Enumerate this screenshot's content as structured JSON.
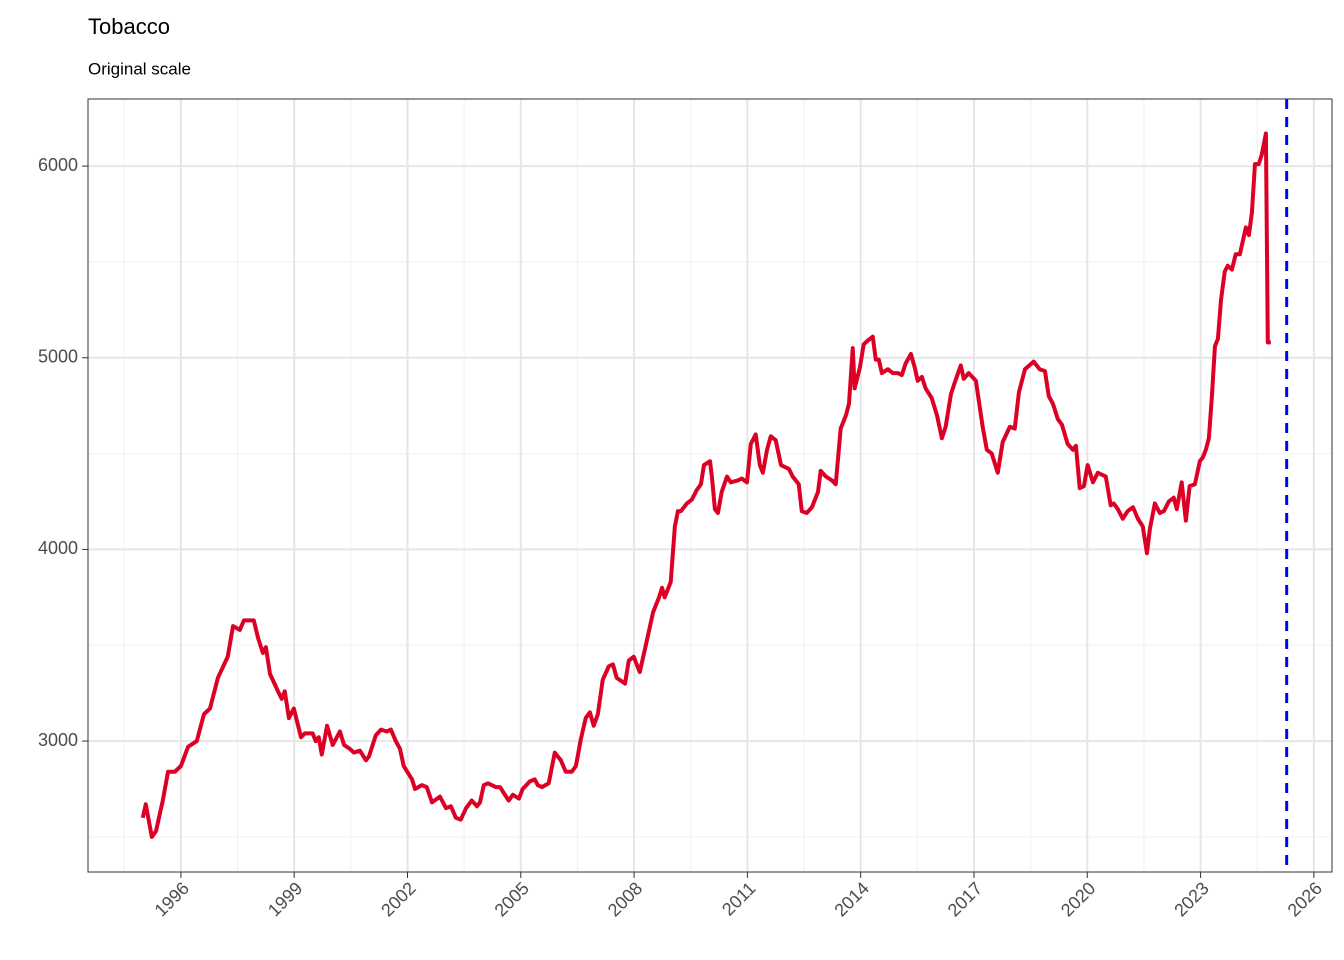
{
  "chart_data": {
    "type": "line",
    "title": "Tobacco",
    "subtitle": "Original scale",
    "x": [
      1994.99,
      1995.07,
      1995.23,
      1995.34,
      1995.52,
      1995.66,
      1995.84,
      1996.0,
      1996.19,
      1996.42,
      1996.61,
      1996.77,
      1996.98,
      1997.24,
      1997.38,
      1997.56,
      1997.67,
      1997.93,
      1998.04,
      1998.17,
      1998.25,
      1998.36,
      1998.57,
      1998.67,
      1998.75,
      1998.86,
      1998.99,
      1999.18,
      1999.28,
      1999.49,
      1999.57,
      1999.65,
      1999.73,
      1999.87,
      2000.02,
      2000.21,
      2000.32,
      2000.47,
      2000.58,
      2000.74,
      2000.9,
      2000.98,
      2001.16,
      2001.3,
      2001.45,
      2001.56,
      2001.69,
      2001.8,
      2001.9,
      2002.12,
      2002.2,
      2002.38,
      2002.51,
      2002.65,
      2002.86,
      2003.02,
      2003.15,
      2003.28,
      2003.41,
      2003.55,
      2003.7,
      2003.84,
      2003.92,
      2004.02,
      2004.13,
      2004.34,
      2004.45,
      2004.58,
      2004.68,
      2004.79,
      2004.95,
      2005.05,
      2005.24,
      2005.37,
      2005.45,
      2005.56,
      2005.74,
      2005.9,
      2006.06,
      2006.19,
      2006.35,
      2006.46,
      2006.59,
      2006.72,
      2006.83,
      2006.93,
      2007.04,
      2007.17,
      2007.33,
      2007.44,
      2007.54,
      2007.76,
      2007.86,
      2007.99,
      2008.15,
      2008.31,
      2008.5,
      2008.66,
      2008.74,
      2008.81,
      2008.97,
      2009.08,
      2009.16,
      2009.24,
      2009.4,
      2009.53,
      2009.66,
      2009.77,
      2009.85,
      2010.01,
      2010.06,
      2010.14,
      2010.22,
      2010.32,
      2010.46,
      2010.56,
      2010.75,
      2010.85,
      2010.99,
      2011.09,
      2011.22,
      2011.33,
      2011.41,
      2011.52,
      2011.62,
      2011.75,
      2011.89,
      2011.99,
      2012.1,
      2012.2,
      2012.28,
      2012.36,
      2012.44,
      2012.57,
      2012.71,
      2012.87,
      2012.94,
      2013.08,
      2013.24,
      2013.34,
      2013.47,
      2013.61,
      2013.69,
      2013.79,
      2013.84,
      2013.98,
      2014.08,
      2014.19,
      2014.32,
      2014.4,
      2014.48,
      2014.56,
      2014.72,
      2014.85,
      2014.98,
      2015.09,
      2015.19,
      2015.33,
      2015.43,
      2015.51,
      2015.62,
      2015.72,
      2015.88,
      2016.02,
      2016.15,
      2016.25,
      2016.39,
      2016.49,
      2016.65,
      2016.73,
      2016.86,
      2017.05,
      2017.23,
      2017.34,
      2017.47,
      2017.63,
      2017.76,
      2017.95,
      2018.08,
      2018.19,
      2018.35,
      2018.58,
      2018.74,
      2018.88,
      2018.98,
      2019.09,
      2019.22,
      2019.33,
      2019.48,
      2019.62,
      2019.7,
      2019.8,
      2019.91,
      2020.01,
      2020.15,
      2020.28,
      2020.49,
      2020.62,
      2020.7,
      2020.81,
      2020.94,
      2021.07,
      2021.21,
      2021.34,
      2021.47,
      2021.58,
      2021.66,
      2021.79,
      2021.92,
      2022.03,
      2022.16,
      2022.29,
      2022.37,
      2022.5,
      2022.61,
      2022.71,
      2022.85,
      2022.98,
      2023.06,
      2023.14,
      2023.22,
      2023.3,
      2023.38,
      2023.46,
      2023.54,
      2023.64,
      2023.72,
      2023.83,
      2023.93,
      2024.04,
      2024.2,
      2024.28,
      2024.36,
      2024.44,
      2024.54,
      2024.62,
      2024.73,
      2024.78,
      2024.86
    ],
    "values": [
      2600,
      2670,
      2500,
      2530,
      2690,
      2840,
      2840,
      2870,
      2970,
      3000,
      3140,
      3170,
      3330,
      3440,
      3600,
      3580,
      3630,
      3630,
      3540,
      3460,
      3490,
      3350,
      3260,
      3220,
      3260,
      3120,
      3170,
      3020,
      3040,
      3040,
      3000,
      3020,
      2930,
      3080,
      2980,
      3050,
      2980,
      2960,
      2940,
      2950,
      2900,
      2920,
      3030,
      3060,
      3050,
      3060,
      3000,
      2960,
      2870,
      2800,
      2750,
      2770,
      2760,
      2680,
      2710,
      2650,
      2660,
      2600,
      2590,
      2650,
      2690,
      2660,
      2680,
      2770,
      2780,
      2760,
      2760,
      2720,
      2690,
      2720,
      2700,
      2750,
      2790,
      2800,
      2770,
      2760,
      2780,
      2940,
      2900,
      2840,
      2840,
      2870,
      3010,
      3120,
      3150,
      3080,
      3140,
      3320,
      3390,
      3400,
      3330,
      3300,
      3420,
      3440,
      3360,
      3500,
      3670,
      3750,
      3800,
      3750,
      3830,
      4120,
      4200,
      4200,
      4240,
      4260,
      4310,
      4340,
      4440,
      4460,
      4380,
      4210,
      4190,
      4300,
      4380,
      4350,
      4360,
      4370,
      4350,
      4550,
      4600,
      4440,
      4400,
      4520,
      4590,
      4570,
      4440,
      4430,
      4420,
      4380,
      4360,
      4340,
      4200,
      4190,
      4220,
      4300,
      4410,
      4380,
      4360,
      4340,
      4630,
      4700,
      4760,
      5050,
      4840,
      4950,
      5070,
      5090,
      5110,
      4990,
      4990,
      4920,
      4940,
      4920,
      4920,
      4910,
      4970,
      5020,
      4950,
      4880,
      4900,
      4840,
      4790,
      4700,
      4580,
      4640,
      4810,
      4870,
      4960,
      4890,
      4920,
      4880,
      4640,
      4520,
      4500,
      4400,
      4560,
      4640,
      4630,
      4820,
      4940,
      4980,
      4940,
      4930,
      4800,
      4760,
      4680,
      4650,
      4550,
      4520,
      4540,
      4320,
      4330,
      4440,
      4350,
      4400,
      4380,
      4230,
      4240,
      4210,
      4160,
      4200,
      4220,
      4160,
      4120,
      3980,
      4110,
      4240,
      4190,
      4200,
      4250,
      4270,
      4210,
      4350,
      4150,
      4330,
      4340,
      4460,
      4480,
      4520,
      4580,
      4800,
      5060,
      5100,
      5300,
      5450,
      5480,
      5460,
      5540,
      5540,
      5680,
      5640,
      5760,
      6010,
      6010,
      6060,
      6170,
      5080,
      5080
    ],
    "color": "#dc0024",
    "xlim": [
      1993.54,
      2026.48
    ],
    "xticks": [
      1996,
      1999,
      2002,
      2005,
      2008,
      2011,
      2014,
      2017,
      2020,
      2023,
      2026
    ],
    "ylim": [
      2317,
      6350
    ],
    "yticks": [
      3000,
      4000,
      5000,
      6000
    ],
    "grid": true,
    "vline": {
      "x": 2025.28,
      "color": "#0000ff"
    }
  }
}
